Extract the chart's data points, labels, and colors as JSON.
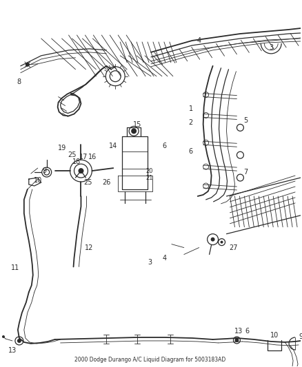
{
  "title": "2000 Dodge Durango A/C Liquid Diagram for 5003183AD",
  "bg_color": "#ffffff",
  "line_color": "#2a2a2a",
  "fig_width": 4.38,
  "fig_height": 5.33,
  "dpi": 100
}
